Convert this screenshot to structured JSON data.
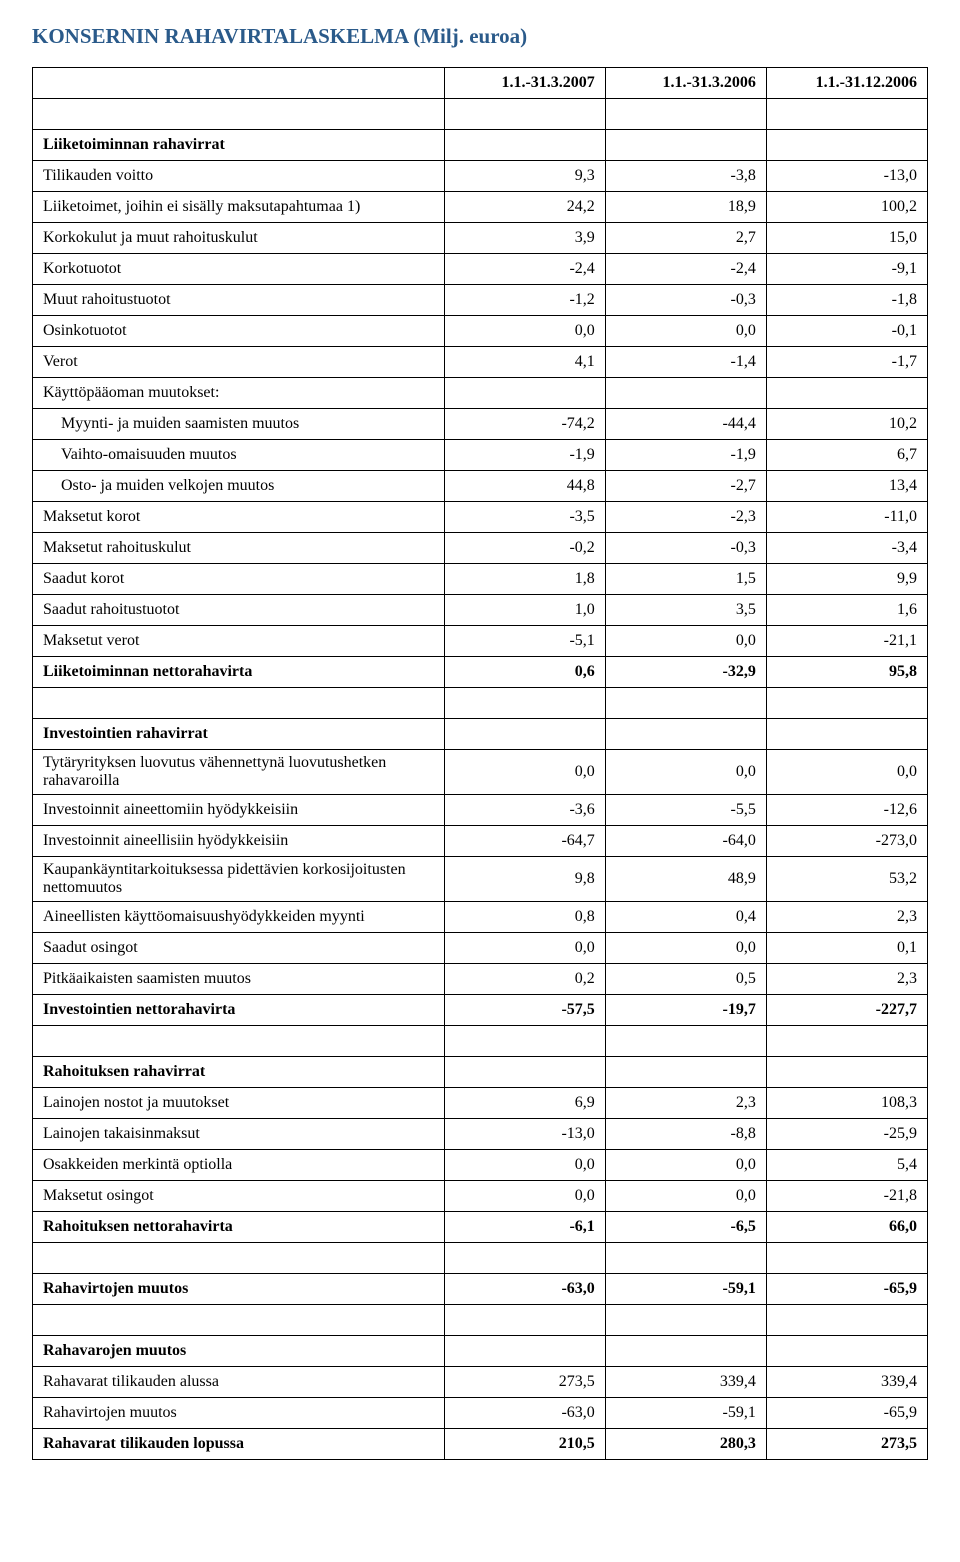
{
  "title": "KONSERNIN RAHAVIRTALASKELMA (Milj. euroa)",
  "columns": [
    "1.1.-31.3.2007",
    "1.1.-31.3.2006",
    "1.1.-31.12.2006"
  ],
  "rows": [
    {
      "type": "header"
    },
    {
      "type": "empty"
    },
    {
      "type": "bold",
      "label": "Liiketoiminnan rahavirrat",
      "v": [
        "",
        "",
        ""
      ]
    },
    {
      "type": "data",
      "label": "Tilikauden voitto",
      "v": [
        "9,3",
        "-3,8",
        "-13,0"
      ]
    },
    {
      "type": "data",
      "label": "Liiketoimet, joihin ei sisälly maksutapahtumaa 1)",
      "v": [
        "24,2",
        "18,9",
        "100,2"
      ]
    },
    {
      "type": "data",
      "label": "Korkokulut ja muut rahoituskulut",
      "v": [
        "3,9",
        "2,7",
        "15,0"
      ]
    },
    {
      "type": "data",
      "label": "Korkotuotot",
      "v": [
        "-2,4",
        "-2,4",
        "-9,1"
      ]
    },
    {
      "type": "data",
      "label": "Muut rahoitustuotot",
      "v": [
        "-1,2",
        "-0,3",
        "-1,8"
      ]
    },
    {
      "type": "data",
      "label": "Osinkotuotot",
      "v": [
        "0,0",
        "0,0",
        "-0,1"
      ]
    },
    {
      "type": "data",
      "label": "Verot",
      "v": [
        "4,1",
        "-1,4",
        "-1,7"
      ]
    },
    {
      "type": "data",
      "label": "Käyttöpääoman muutokset:",
      "v": [
        "",
        "",
        ""
      ]
    },
    {
      "type": "data",
      "label": "Myynti- ja muiden saamisten muutos",
      "indent": true,
      "v": [
        "-74,2",
        "-44,4",
        "10,2"
      ]
    },
    {
      "type": "data",
      "label": "Vaihto-omaisuuden muutos",
      "indent": true,
      "v": [
        "-1,9",
        "-1,9",
        "6,7"
      ]
    },
    {
      "type": "data",
      "label": "Osto- ja muiden velkojen muutos",
      "indent": true,
      "v": [
        "44,8",
        "-2,7",
        "13,4"
      ]
    },
    {
      "type": "data",
      "label": "Maksetut korot",
      "v": [
        "-3,5",
        "-2,3",
        "-11,0"
      ]
    },
    {
      "type": "data",
      "label": "Maksetut rahoituskulut",
      "v": [
        "-0,2",
        "-0,3",
        "-3,4"
      ]
    },
    {
      "type": "data",
      "label": "Saadut korot",
      "v": [
        "1,8",
        "1,5",
        "9,9"
      ]
    },
    {
      "type": "data",
      "label": "Saadut rahoitustuotot",
      "v": [
        "1,0",
        "3,5",
        "1,6"
      ]
    },
    {
      "type": "data",
      "label": "Maksetut verot",
      "v": [
        "-5,1",
        "0,0",
        "-21,1"
      ]
    },
    {
      "type": "bold",
      "label": "Liiketoiminnan nettorahavirta",
      "v": [
        "0,6",
        "-32,9",
        "95,8"
      ]
    },
    {
      "type": "empty"
    },
    {
      "type": "bold",
      "label": "Investointien rahavirrat",
      "v": [
        "",
        "",
        ""
      ]
    },
    {
      "type": "data",
      "label": "Tytäryrityksen luovutus vähennettynä luovutushetken rahavaroilla",
      "v": [
        "0,0",
        "0,0",
        "0,0"
      ]
    },
    {
      "type": "data",
      "label": "Investoinnit aineettomiin hyödykkeisiin",
      "v": [
        "-3,6",
        "-5,5",
        "-12,6"
      ]
    },
    {
      "type": "data",
      "label": "Investoinnit aineellisiin hyödykkeisiin",
      "v": [
        "-64,7",
        "-64,0",
        "-273,0"
      ]
    },
    {
      "type": "data",
      "label": "Kaupankäyntitarkoituksessa pidettävien korkosijoitusten nettomuutos",
      "v": [
        "9,8",
        "48,9",
        "53,2"
      ]
    },
    {
      "type": "data",
      "label": "Aineellisten käyttöomaisuushyödykkeiden myynti",
      "v": [
        "0,8",
        "0,4",
        "2,3"
      ]
    },
    {
      "type": "data",
      "label": "Saadut osingot",
      "v": [
        "0,0",
        "0,0",
        "0,1"
      ]
    },
    {
      "type": "data",
      "label": "Pitkäaikaisten saamisten muutos",
      "v": [
        "0,2",
        "0,5",
        "2,3"
      ]
    },
    {
      "type": "bold",
      "label": "Investointien nettorahavirta",
      "v": [
        "-57,5",
        "-19,7",
        "-227,7"
      ]
    },
    {
      "type": "empty"
    },
    {
      "type": "bold",
      "label": "Rahoituksen rahavirrat",
      "v": [
        "",
        "",
        ""
      ]
    },
    {
      "type": "data",
      "label": "Lainojen nostot ja muutokset",
      "v": [
        "6,9",
        "2,3",
        "108,3"
      ]
    },
    {
      "type": "data",
      "label": "Lainojen takaisinmaksut",
      "v": [
        "-13,0",
        "-8,8",
        "-25,9"
      ]
    },
    {
      "type": "data",
      "label": "Osakkeiden merkintä optiolla",
      "v": [
        "0,0",
        "0,0",
        "5,4"
      ]
    },
    {
      "type": "data",
      "label": "Maksetut osingot",
      "v": [
        "0,0",
        "0,0",
        "-21,8"
      ]
    },
    {
      "type": "bold",
      "label": "Rahoituksen nettorahavirta",
      "v": [
        "-6,1",
        "-6,5",
        "66,0"
      ]
    },
    {
      "type": "empty"
    },
    {
      "type": "bold",
      "label": "Rahavirtojen muutos",
      "v": [
        "-63,0",
        "-59,1",
        "-65,9"
      ]
    },
    {
      "type": "empty"
    },
    {
      "type": "bold",
      "label": "Rahavarojen muutos",
      "v": [
        "",
        "",
        ""
      ]
    },
    {
      "type": "data",
      "label": "Rahavarat tilikauden alussa",
      "v": [
        "273,5",
        "339,4",
        "339,4"
      ]
    },
    {
      "type": "data",
      "label": "Rahavirtojen muutos",
      "v": [
        "-63,0",
        "-59,1",
        "-65,9"
      ]
    },
    {
      "type": "bold",
      "label": "Rahavarat tilikauden lopussa",
      "v": [
        "210,5",
        "280,3",
        "273,5"
      ]
    }
  ]
}
